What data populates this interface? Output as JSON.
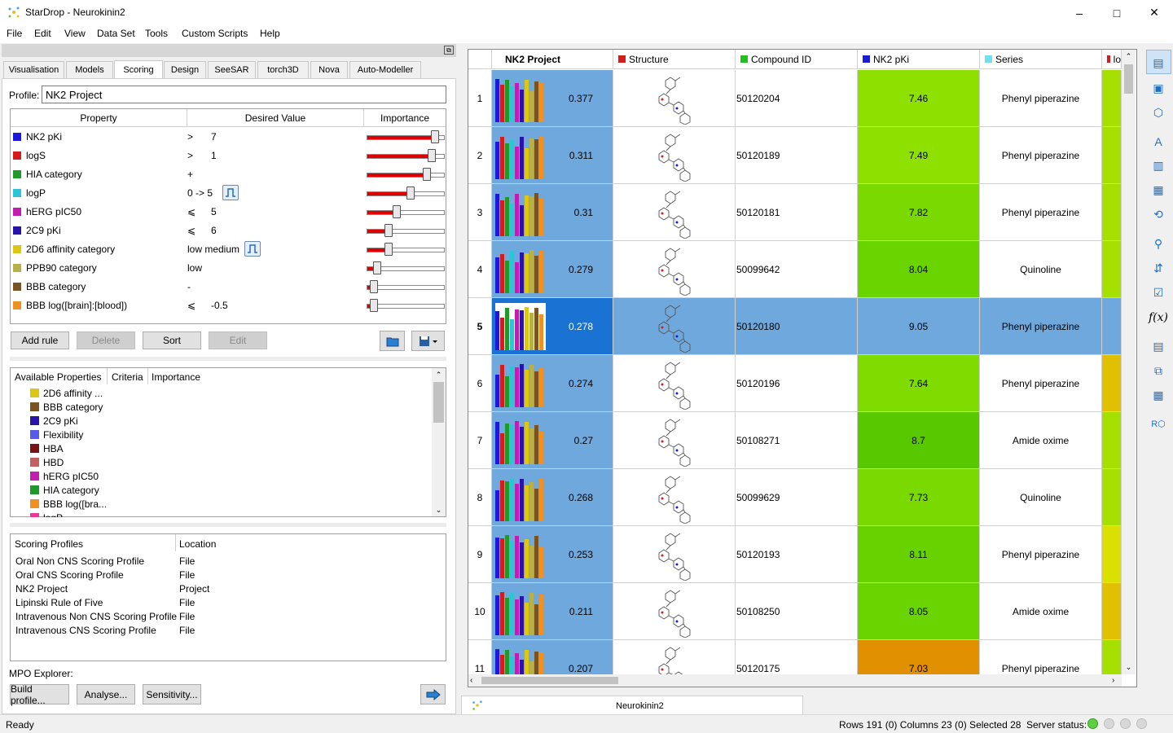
{
  "window": {
    "title": "StarDrop - Neurokinin2",
    "minimize": "–",
    "maximize": "□",
    "close": "✕"
  },
  "menu": [
    "File",
    "Edit",
    "View",
    "Data Set",
    "Tools",
    "Custom Scripts",
    "Help"
  ],
  "tabs": [
    "Visualisation",
    "Models",
    "Scoring",
    "Design",
    "SeeSAR",
    "torch3D",
    "Nova",
    "Auto-Modeller"
  ],
  "active_tab": "Scoring",
  "profile": {
    "label": "Profile:",
    "value": "NK2 Project"
  },
  "rules": {
    "headers": [
      "Property",
      "Desired Value",
      "Importance"
    ],
    "rows": [
      {
        "name": "NK2 pKi",
        "color": "#1a1ad8",
        "op": ">",
        "value": "7",
        "importance": 0.88
      },
      {
        "name": "logS",
        "color": "#d41c1c",
        "op": ">",
        "value": "1",
        "importance": 0.84
      },
      {
        "name": "HIA category",
        "color": "#1f9a2a",
        "op": "+",
        "value": "",
        "importance": 0.78
      },
      {
        "name": "logP",
        "color": "#2ec4d8",
        "op": "0 -> 5",
        "value": "",
        "importance": 0.56,
        "icon": true
      },
      {
        "name": "hERG pIC50",
        "color": "#c41cb0",
        "op": "⩽",
        "value": "5",
        "importance": 0.38
      },
      {
        "name": "2C9 pKi",
        "color": "#2a13a8",
        "op": "⩽",
        "value": "6",
        "importance": 0.28
      },
      {
        "name": "2D6 affinity category",
        "color": "#dcc814",
        "op": "low medium",
        "value": "",
        "importance": 0.28,
        "icon": true
      },
      {
        "name": "PPB90 category",
        "color": "#b8b048",
        "op": "low",
        "value": "",
        "importance": 0.13
      },
      {
        "name": "BBB category",
        "color": "#7a5420",
        "op": "-",
        "value": "",
        "importance": 0.09
      },
      {
        "name": "BBB log([brain]:[blood])",
        "color": "#f09020",
        "op": "⩽",
        "value": "-0.5",
        "importance": 0.09
      }
    ]
  },
  "buttons": {
    "add_rule": "Add rule",
    "delete": "Delete",
    "sort": "Sort",
    "edit": "Edit"
  },
  "available": {
    "headers": [
      "Available Properties",
      "Criteria",
      "Importance"
    ],
    "items": [
      {
        "name": "2D6 affinity ...",
        "color": "#dcc814"
      },
      {
        "name": "BBB category",
        "color": "#7a5420"
      },
      {
        "name": "2C9 pKi",
        "color": "#2a13a8"
      },
      {
        "name": "Flexibility",
        "color": "#5a5ae8"
      },
      {
        "name": "HBA",
        "color": "#7a1414"
      },
      {
        "name": "HBD",
        "color": "#c46060"
      },
      {
        "name": "hERG pIC50",
        "color": "#c41cb0"
      },
      {
        "name": "HIA category",
        "color": "#1f9a2a"
      },
      {
        "name": "BBB log([bra...",
        "color": "#f09020"
      },
      {
        "name": "logP",
        "color": "#e83898"
      }
    ]
  },
  "scoring_profiles": {
    "headers": [
      "Scoring Profiles",
      "Location"
    ],
    "rows": [
      [
        "Oral Non CNS Scoring Profile",
        "File"
      ],
      [
        "Oral CNS Scoring Profile",
        "File"
      ],
      [
        "NK2 Project",
        "Project"
      ],
      [
        "Lipinski Rule of Five",
        "File"
      ],
      [
        "Intravenous Non CNS Scoring Profile",
        "File"
      ],
      [
        "Intravenous CNS Scoring Profile",
        "File"
      ]
    ]
  },
  "mpo": {
    "label": "MPO Explorer:",
    "build": "Build profile...",
    "analyse": "Analyse...",
    "sensitivity": "Sensitivity..."
  },
  "grid": {
    "headers": [
      {
        "label": "NK2 Project",
        "color": ""
      },
      {
        "label": "Structure",
        "color": "#d41c1c"
      },
      {
        "label": "Compound ID",
        "color": "#20c020"
      },
      {
        "label": "NK2 pKi",
        "color": "#1a1ad8"
      },
      {
        "label": "Series",
        "color": "#70e0f0"
      },
      {
        "label": "lo",
        "color": "#d41c1c"
      }
    ],
    "rows": [
      {
        "n": "1",
        "score": "0.377",
        "id": "50120204",
        "pki": "7.46",
        "pki_color": "#8ee000",
        "series": "Phenyl piperazine",
        "last": "#a6e000"
      },
      {
        "n": "2",
        "score": "0.311",
        "id": "50120189",
        "pki": "7.49",
        "pki_color": "#8ee000",
        "series": "Phenyl piperazine",
        "last": "#a6e000"
      },
      {
        "n": "3",
        "score": "0.31",
        "id": "50120181",
        "pki": "7.82",
        "pki_color": "#7ada00",
        "series": "Phenyl piperazine",
        "last": "#a6e000"
      },
      {
        "n": "4",
        "score": "0.279",
        "id": "50099642",
        "pki": "8.04",
        "pki_color": "#6ad400",
        "series": "Quinoline",
        "last": "#a6e000"
      },
      {
        "n": "5",
        "score": "0.278",
        "id": "50120180",
        "pki": "9.05",
        "pki_color": "#6fa8dc",
        "series": "Phenyl piperazine",
        "last": "#6fa8dc",
        "selected": true
      },
      {
        "n": "6",
        "score": "0.274",
        "id": "50120196",
        "pki": "7.64",
        "pki_color": "#80dc00",
        "series": "Phenyl piperazine",
        "last": "#e0c000"
      },
      {
        "n": "7",
        "score": "0.27",
        "id": "50108271",
        "pki": "8.7",
        "pki_color": "#58c800",
        "series": "Amide oxime",
        "last": "#a6e000"
      },
      {
        "n": "8",
        "score": "0.268",
        "id": "50099629",
        "pki": "7.73",
        "pki_color": "#7ada00",
        "series": "Quinoline",
        "last": "#a6e000"
      },
      {
        "n": "9",
        "score": "0.253",
        "id": "50120193",
        "pki": "8.11",
        "pki_color": "#68d200",
        "series": "Phenyl piperazine",
        "last": "#dce000"
      },
      {
        "n": "10",
        "score": "0.211",
        "id": "50108250",
        "pki": "8.05",
        "pki_color": "#6ad400",
        "series": "Amide oxime",
        "last": "#e0c000"
      },
      {
        "n": "11",
        "score": "0.207",
        "id": "50120175",
        "pki": "7.03",
        "pki_color": "#e09000",
        "series": "Phenyl piperazine",
        "last": "#a6e000"
      }
    ]
  },
  "doc_tab": "Neurokinin2",
  "status": {
    "left": "Ready",
    "counts": "Rows 191 (0) Columns 23 (0) Selected 28",
    "server": "Server status:"
  }
}
